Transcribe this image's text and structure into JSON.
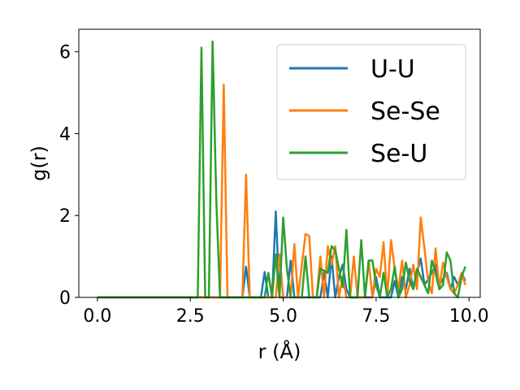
{
  "chart_data": {
    "type": "line",
    "title": "",
    "xlabel": "r (Å)",
    "ylabel": "g(r)",
    "xlim": [
      -0.5,
      10.3
    ],
    "ylim": [
      0,
      6.55
    ],
    "xticks": [
      0.0,
      2.5,
      5.0,
      7.5,
      10.0
    ],
    "xtick_labels": [
      "0.0",
      "2.5",
      "5.0",
      "7.5",
      "10.0"
    ],
    "yticks": [
      0,
      2,
      4,
      6
    ],
    "ytick_labels": [
      "0",
      "2",
      "4",
      "6"
    ],
    "grid": false,
    "legend_position": "top-right",
    "series": [
      {
        "name": "U-U",
        "color": "#1f77b4",
        "points": [
          [
            0,
            0
          ],
          [
            3.9,
            0
          ],
          [
            4.0,
            0.75
          ],
          [
            4.1,
            0
          ],
          [
            4.4,
            0
          ],
          [
            4.5,
            0.62
          ],
          [
            4.6,
            0
          ],
          [
            4.7,
            0
          ],
          [
            4.8,
            2.1
          ],
          [
            4.9,
            0
          ],
          [
            5.1,
            0
          ],
          [
            5.2,
            0.9
          ],
          [
            5.3,
            0
          ],
          [
            6.0,
            0
          ],
          [
            6.1,
            0.6
          ],
          [
            6.2,
            0
          ],
          [
            6.3,
            1.0
          ],
          [
            6.4,
            0
          ],
          [
            6.5,
            0.5
          ],
          [
            6.6,
            0.8
          ],
          [
            6.7,
            0.2
          ],
          [
            6.8,
            0
          ],
          [
            7.4,
            0
          ],
          [
            7.5,
            0.5
          ],
          [
            7.6,
            0
          ],
          [
            7.9,
            0
          ],
          [
            8.0,
            0.4
          ],
          [
            8.1,
            0
          ],
          [
            8.2,
            0.5
          ],
          [
            8.3,
            0.2
          ],
          [
            8.4,
            0.7
          ],
          [
            8.5,
            0.2
          ],
          [
            8.6,
            0.6
          ],
          [
            8.7,
            0.95
          ],
          [
            8.8,
            0.3
          ],
          [
            9.0,
            0.6
          ],
          [
            9.1,
            0.8
          ],
          [
            9.2,
            0.3
          ],
          [
            9.4,
            0.6
          ],
          [
            9.5,
            0.2
          ],
          [
            9.6,
            0.5
          ],
          [
            9.7,
            0.3
          ],
          [
            9.8,
            0.6
          ],
          [
            9.9,
            0.4
          ]
        ]
      },
      {
        "name": "Se-Se",
        "color": "#ff7f0e",
        "points": [
          [
            0,
            0
          ],
          [
            3.3,
            0
          ],
          [
            3.4,
            5.2
          ],
          [
            3.5,
            0
          ],
          [
            3.9,
            0
          ],
          [
            4.0,
            3.0
          ],
          [
            4.1,
            0
          ],
          [
            4.8,
            0
          ],
          [
            4.9,
            1.05
          ],
          [
            5.0,
            0
          ],
          [
            5.2,
            0
          ],
          [
            5.3,
            1.3
          ],
          [
            5.4,
            0
          ],
          [
            5.6,
            1.55
          ],
          [
            5.7,
            1.5
          ],
          [
            5.8,
            0
          ],
          [
            5.9,
            0
          ],
          [
            6.0,
            1.0
          ],
          [
            6.1,
            0
          ],
          [
            6.2,
            1.25
          ],
          [
            6.3,
            0.8
          ],
          [
            6.4,
            1.25
          ],
          [
            6.5,
            0
          ],
          [
            6.6,
            0.5
          ],
          [
            6.7,
            0
          ],
          [
            6.8,
            0
          ],
          [
            6.9,
            1.0
          ],
          [
            7.0,
            0
          ],
          [
            7.2,
            0
          ],
          [
            7.3,
            0.9
          ],
          [
            7.4,
            0
          ],
          [
            7.5,
            0.7
          ],
          [
            7.6,
            0.5
          ],
          [
            7.7,
            1.35
          ],
          [
            7.8,
            0
          ],
          [
            7.9,
            1.4
          ],
          [
            8.0,
            0.7
          ],
          [
            8.1,
            0.2
          ],
          [
            8.2,
            0.9
          ],
          [
            8.3,
            0
          ],
          [
            8.4,
            0.3
          ],
          [
            8.5,
            0.8
          ],
          [
            8.6,
            0.2
          ],
          [
            8.7,
            1.95
          ],
          [
            8.8,
            1.2
          ],
          [
            8.9,
            0.4
          ],
          [
            9.0,
            0.1
          ],
          [
            9.1,
            1.2
          ],
          [
            9.2,
            0.2
          ],
          [
            9.3,
            0.85
          ],
          [
            9.4,
            0.5
          ],
          [
            9.5,
            0.2
          ],
          [
            9.6,
            0.1
          ],
          [
            9.7,
            0.3
          ],
          [
            9.8,
            0.6
          ],
          [
            9.9,
            0.3
          ]
        ]
      },
      {
        "name": "Se-U",
        "color": "#2ca02c",
        "points": [
          [
            0,
            0
          ],
          [
            2.7,
            0
          ],
          [
            2.8,
            6.1
          ],
          [
            2.9,
            0
          ],
          [
            3.0,
            0
          ],
          [
            3.1,
            6.25
          ],
          [
            3.2,
            2.35
          ],
          [
            3.3,
            0
          ],
          [
            4.5,
            0
          ],
          [
            4.6,
            0.6
          ],
          [
            4.7,
            0
          ],
          [
            4.8,
            1.05
          ],
          [
            4.9,
            0
          ],
          [
            5.0,
            1.95
          ],
          [
            5.1,
            0.7
          ],
          [
            5.2,
            0
          ],
          [
            5.5,
            0
          ],
          [
            5.6,
            1.0
          ],
          [
            5.7,
            0
          ],
          [
            5.9,
            0
          ],
          [
            6.0,
            0.7
          ],
          [
            6.1,
            0.65
          ],
          [
            6.2,
            0.6
          ],
          [
            6.3,
            1.25
          ],
          [
            6.4,
            1.15
          ],
          [
            6.5,
            0.7
          ],
          [
            6.6,
            0.25
          ],
          [
            6.7,
            1.65
          ],
          [
            6.8,
            0
          ],
          [
            7.0,
            0
          ],
          [
            7.1,
            1.4
          ],
          [
            7.2,
            0
          ],
          [
            7.3,
            0.9
          ],
          [
            7.4,
            0.9
          ],
          [
            7.5,
            0.3
          ],
          [
            7.6,
            0
          ],
          [
            7.7,
            0.6
          ],
          [
            7.8,
            0
          ],
          [
            7.9,
            0.2
          ],
          [
            8.0,
            0.75
          ],
          [
            8.1,
            0
          ],
          [
            8.2,
            0.2
          ],
          [
            8.3,
            0.85
          ],
          [
            8.4,
            0.4
          ],
          [
            8.5,
            0.2
          ],
          [
            8.6,
            0.7
          ],
          [
            8.7,
            0.5
          ],
          [
            8.8,
            0.3
          ],
          [
            8.9,
            0.1
          ],
          [
            9.0,
            0.9
          ],
          [
            9.1,
            0.6
          ],
          [
            9.2,
            0.2
          ],
          [
            9.3,
            0.3
          ],
          [
            9.4,
            1.1
          ],
          [
            9.5,
            0.9
          ],
          [
            9.6,
            0.1
          ],
          [
            9.7,
            0
          ],
          [
            9.8,
            0.5
          ],
          [
            9.9,
            0.75
          ]
        ]
      }
    ]
  }
}
